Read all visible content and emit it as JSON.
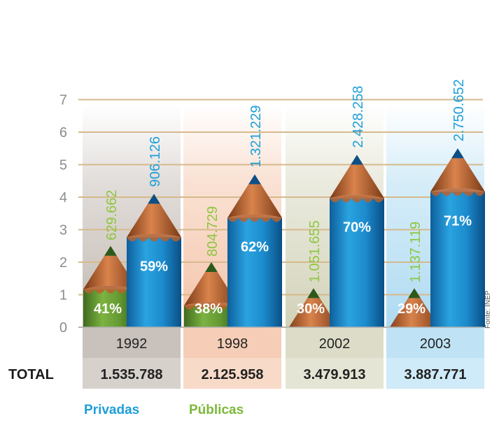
{
  "chart_data": {
    "type": "bar",
    "title": "",
    "xlabel": "",
    "ylabel": "",
    "ylim": [
      0,
      7
    ],
    "yticks": [
      "0",
      "1",
      "2",
      "3",
      "4",
      "5",
      "6",
      "7"
    ],
    "grid": true,
    "categories": [
      "1992",
      "1998",
      "2002",
      "2003"
    ],
    "series": [
      {
        "name": "Públicas",
        "color": "#6a9a35",
        "heights": [
          2.5,
          2.0,
          1.2,
          1.2
        ],
        "value_labels": [
          "629.662",
          "804.729",
          "1.051.655",
          "1.137.119"
        ],
        "percent_labels": [
          "41%",
          "38%",
          "30%",
          "29%"
        ]
      },
      {
        "name": "Privadas",
        "color": "#1e8fcd",
        "heights": [
          4.1,
          4.7,
          5.3,
          5.5
        ],
        "value_labels": [
          "906.126",
          "1.321.229",
          "2.428.258",
          "2.750.652"
        ],
        "percent_labels": [
          "59%",
          "62%",
          "70%",
          "71%"
        ]
      }
    ],
    "totals_label": "TOTAL",
    "totals": [
      "1.535.788",
      "2.125.958",
      "3.479.913",
      "3.887.771"
    ],
    "column_colors": [
      "#c9c1bb",
      "#f6cdb6",
      "#dcdcc8",
      "#bfe3f5"
    ],
    "source": "Fonte: INEP"
  }
}
